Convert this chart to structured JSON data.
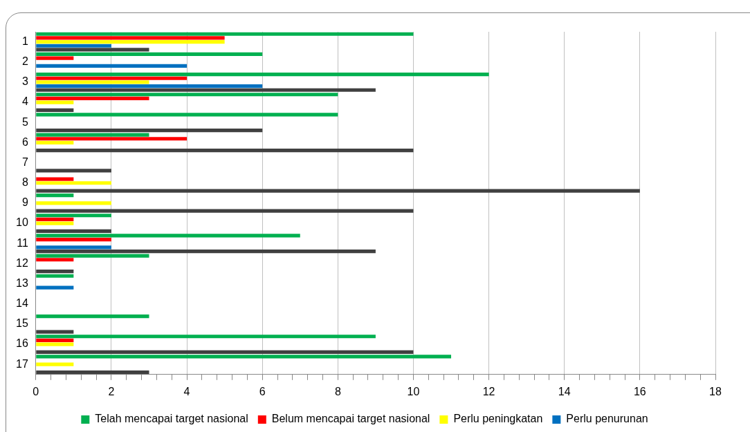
{
  "chart_data": {
    "type": "bar",
    "orientation": "horizontal",
    "categories": [
      "1",
      "2",
      "3",
      "4",
      "5",
      "6",
      "7",
      "8",
      "9",
      "10",
      "11",
      "12",
      "13",
      "14",
      "15",
      "16",
      "17"
    ],
    "series": [
      {
        "name": "Telah mencapai target nasional",
        "color": "#00b050",
        "values": [
          10,
          6,
          12,
          8,
          8,
          3,
          0,
          0,
          1,
          2,
          7,
          3,
          1,
          0,
          3,
          9,
          11
        ]
      },
      {
        "name": "Belum mencapai target nasional",
        "color": "#ff0000",
        "values": [
          5,
          1,
          4,
          3,
          0,
          4,
          0,
          1,
          0,
          1,
          2,
          1,
          0,
          0,
          0,
          1,
          0
        ]
      },
      {
        "name": "Perlu peningkatan",
        "color": "#ffff00",
        "values": [
          5,
          0,
          3,
          1,
          0,
          1,
          0,
          2,
          2,
          1,
          0,
          0,
          0,
          0,
          0,
          1,
          1
        ]
      },
      {
        "name": "Perlu penurunan",
        "color": "#0070c0",
        "values": [
          2,
          4,
          6,
          0,
          0,
          0,
          0,
          0,
          0,
          0,
          2,
          0,
          1,
          0,
          0,
          0,
          0
        ]
      },
      {
        "color": "#404040",
        "values": [
          3,
          0,
          9,
          1,
          6,
          10,
          2,
          16,
          10,
          2,
          9,
          1,
          0,
          0,
          1,
          10,
          3
        ]
      }
    ],
    "xlim": [
      0,
      18
    ],
    "xticks": [
      0,
      {
        "value": 0.4,
        "label": null
      },
      {
        "value": 0.8,
        "label": null
      },
      {
        "value": 1.2,
        "label": null
      },
      {
        "value": 1.6,
        "label": null
      },
      2,
      {
        "value": 2.4,
        "label": null
      },
      {
        "value": 2.8,
        "label": null
      },
      {
        "value": 3.2,
        "label": null
      },
      {
        "value": 3.6,
        "label": null
      },
      4,
      {
        "value": 4.4,
        "label": null
      },
      {
        "value": 4.8,
        "label": null
      },
      {
        "value": 5.2,
        "label": null
      },
      {
        "value": 5.6,
        "label": null
      },
      6,
      {
        "value": 6.4,
        "label": null
      },
      {
        "value": 6.8,
        "label": null
      },
      {
        "value": 7.2,
        "label": null
      },
      {
        "value": 7.6,
        "label": null
      },
      8,
      {
        "value": 8.4,
        "label": null
      },
      {
        "value": 8.8,
        "label": null
      },
      {
        "value": 9.2,
        "label": null
      },
      {
        "value": 9.6,
        "label": null
      },
      10,
      {
        "value": 10.4,
        "label": null
      },
      {
        "value": 10.8,
        "label": null
      },
      {
        "value": 11.2,
        "label": null
      },
      {
        "value": 11.6,
        "label": null
      },
      12,
      {
        "value": 12.4,
        "label": null
      },
      {
        "value": 12.8,
        "label": null
      },
      {
        "value": 13.2,
        "label": null
      },
      {
        "value": 13.6,
        "label": null
      },
      14,
      {
        "value": 14.4,
        "label": null
      },
      {
        "value": 14.8,
        "label": null
      },
      {
        "value": 15.2,
        "label": null
      },
      {
        "value": 15.6,
        "label": null
      },
      16,
      {
        "value": 16.4,
        "label": null
      },
      {
        "value": 16.8,
        "label": null
      },
      {
        "value": 17.2,
        "label": null
      },
      {
        "value": 17.6,
        "label": null
      },
      18
    ],
    "grid": "x",
    "legend": "bottom"
  }
}
